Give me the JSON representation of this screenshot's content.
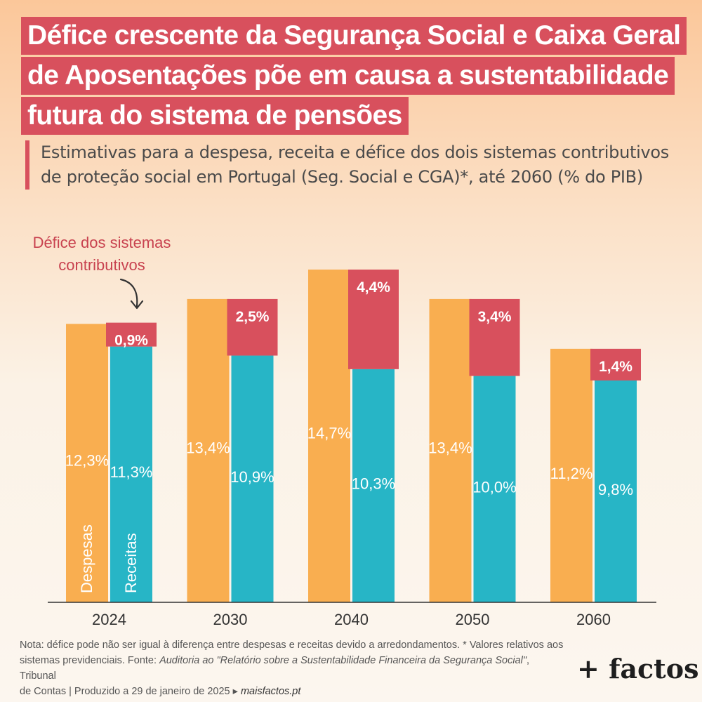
{
  "title_lines": [
    "Défice crescente da Segurança Social e Caixa Geral",
    "de Aposentações põe em causa a sustentabilidade",
    "futura do sistema de pensões"
  ],
  "subtitle_lines": [
    "Estimativas para a despesa, receita e défice dos dois sistemas contributivos",
    "de proteção social em Portugal (Seg. Social e CGA)*, até 2060 (% do PIB)"
  ],
  "annotation_lines": [
    "Défice dos sistemas",
    "contributivos"
  ],
  "chart_data": {
    "type": "bar",
    "categories": [
      "2024",
      "2030",
      "2040",
      "2050",
      "2060"
    ],
    "series": [
      {
        "name": "Despesas",
        "values": [
          12.3,
          13.4,
          14.7,
          13.4,
          11.2
        ],
        "labels": [
          "12,3%",
          "13,4%",
          "14,7%",
          "13,4%",
          "11,2%"
        ],
        "color": "#f9ae50"
      },
      {
        "name": "Receitas",
        "values": [
          11.3,
          10.9,
          10.3,
          10.0,
          9.8
        ],
        "labels": [
          "11,3%",
          "10,9%",
          "10,3%",
          "10,0%",
          "9,8%"
        ],
        "color": "#27b5c6"
      }
    ],
    "deficit": {
      "values": [
        0.9,
        2.5,
        4.4,
        3.4,
        1.4
      ],
      "labels": [
        "0,9%",
        "2,5%",
        "4,4%",
        "3,4%",
        "1,4%"
      ],
      "color": "#d8505d"
    },
    "ylim": [
      0,
      14.7
    ],
    "grid": false,
    "legend": "inside first bars"
  },
  "footnote": {
    "lines": [
      [
        {
          "t": "Nota: défice pode não ser igual à diferença entre despesas e receitas devido a arredondamentos. * Valores relativos aos"
        }
      ],
      [
        {
          "t": "sistemas previdenciais. Fonte: "
        },
        {
          "t": "Auditoria ao \"Relatório sobre a Sustentabilidade Financeira da Segurança Social\"",
          "style": "it"
        },
        {
          "t": ", Tribunal"
        }
      ],
      [
        {
          "t": "de Contas  |  Produzido a 29 de janeiro de 2025 "
        },
        {
          "t": "▸ "
        },
        {
          "t": "maisfactos.pt",
          "style": "link"
        }
      ]
    ]
  },
  "brand": "+ factos"
}
